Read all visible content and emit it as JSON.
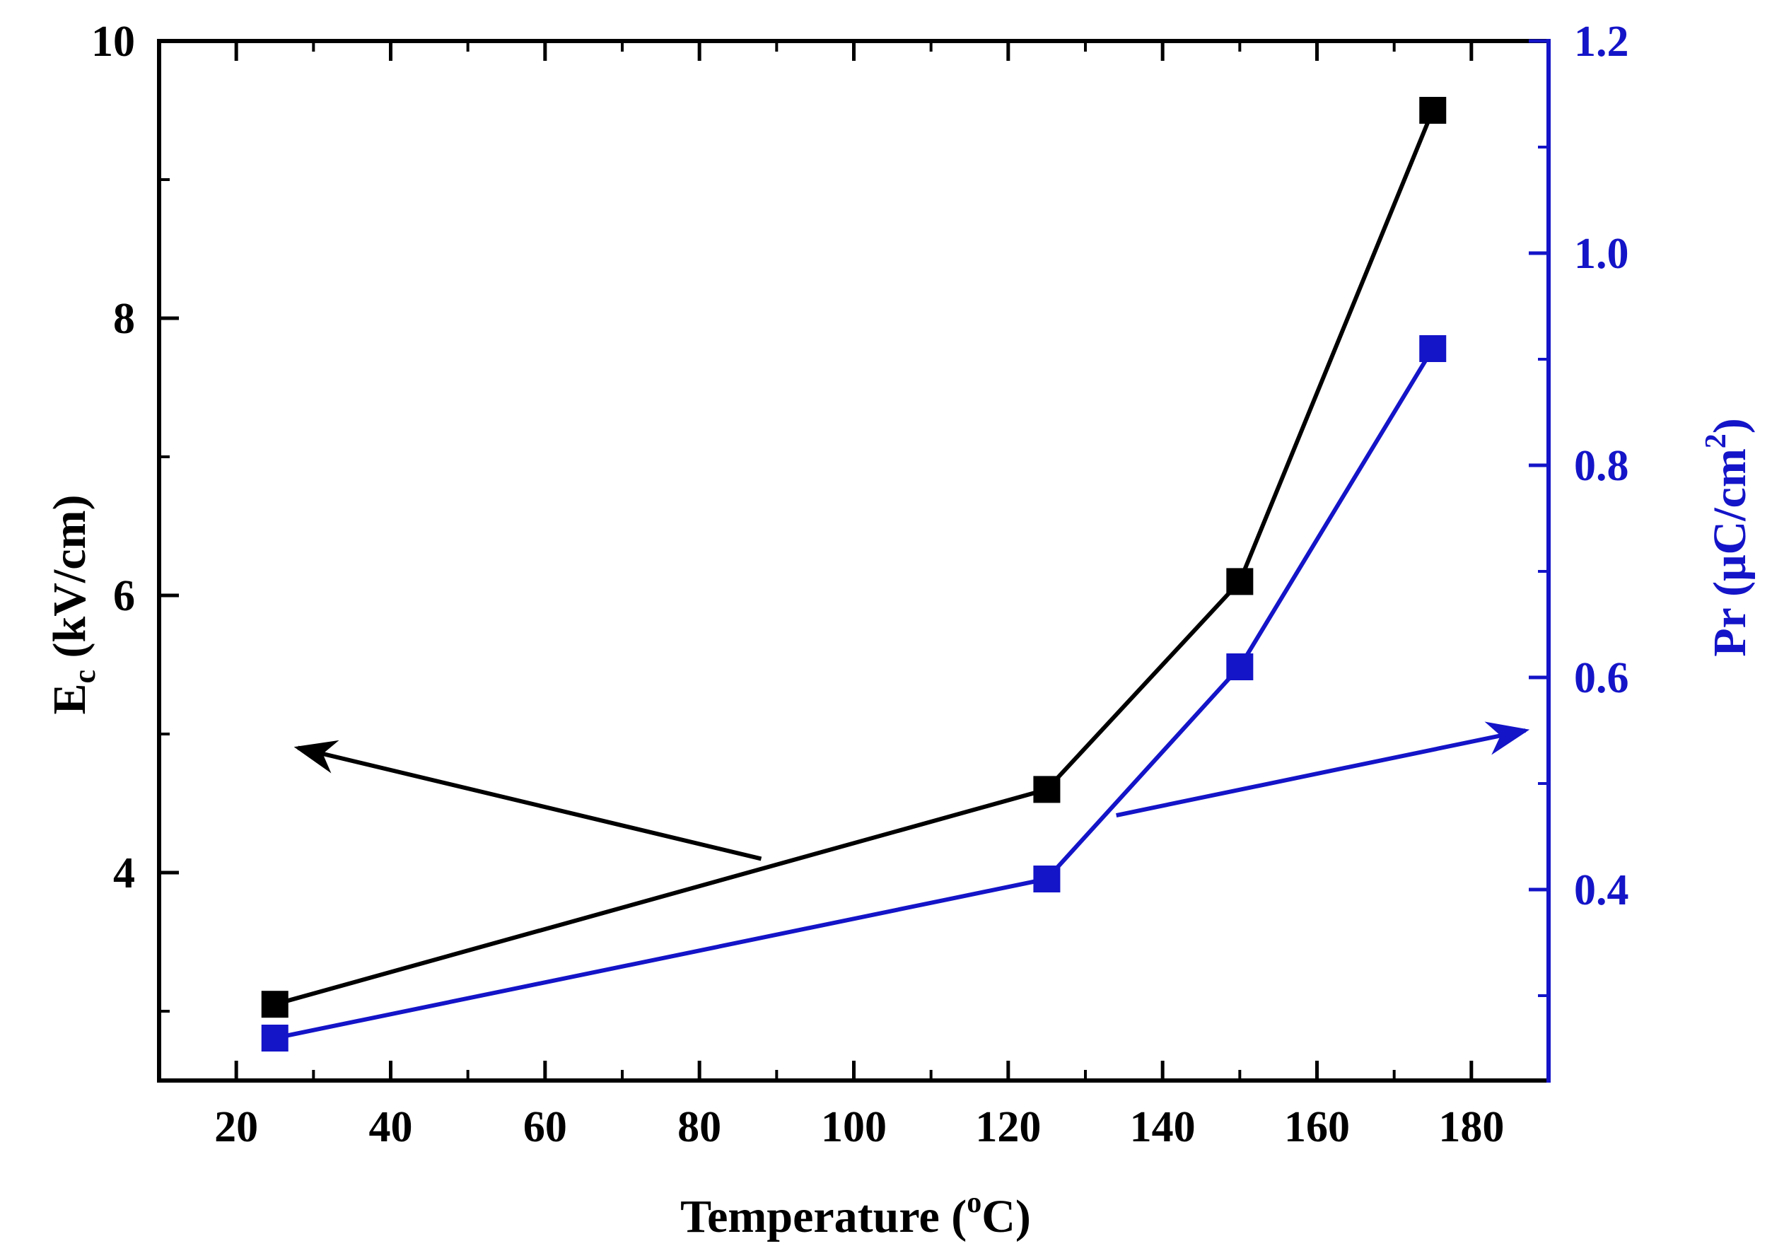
{
  "chart_data": {
    "type": "line",
    "title": "",
    "xlabel": {
      "main": "Temperature (",
      "sup": "o",
      "end": "C)"
    },
    "ylabel_left": {
      "main": "E",
      "sub": "c",
      "end": " (kV/cm)"
    },
    "ylabel_right": {
      "main": "Pr (μC/cm",
      "sup": "2",
      "end": ")"
    },
    "xlim": [
      10,
      190
    ],
    "ylim_left": [
      2.5,
      10
    ],
    "ylim_right": [
      0.22,
      1.2
    ],
    "x_ticks": [
      20,
      40,
      60,
      80,
      100,
      120,
      140,
      160,
      180
    ],
    "y_left_ticks": [
      4,
      6,
      8,
      10
    ],
    "y_left_tick_labels": [
      "4",
      "6",
      "8",
      "10"
    ],
    "y_right_ticks": [
      0.4,
      0.6,
      0.8,
      1.0,
      1.2
    ],
    "y_right_tick_labels": [
      "0.4",
      "0.6",
      "0.8",
      "1.0",
      "1.2"
    ],
    "grid": false,
    "series": [
      {
        "name": "Ec",
        "axis": "left",
        "color": "#000000",
        "x": [
          25,
          125,
          150,
          175
        ],
        "values": [
          3.05,
          4.6,
          6.1,
          9.5
        ]
      },
      {
        "name": "Pr",
        "axis": "right",
        "color": "#1414c8",
        "x": [
          25,
          125,
          150,
          175
        ],
        "values": [
          0.26,
          0.41,
          0.61,
          0.91
        ]
      }
    ],
    "annotations": [
      {
        "name": "arrow-to-left-axis",
        "color": "#000000",
        "from": {
          "x": 88,
          "y_left": 4.1
        },
        "to": {
          "x": 28,
          "y_left": 4.9
        }
      },
      {
        "name": "arrow-to-right-axis",
        "color": "#1414c8",
        "from": {
          "x": 134,
          "y_right": 0.47
        },
        "to": {
          "x": 187,
          "y_right": 0.55
        }
      }
    ]
  }
}
